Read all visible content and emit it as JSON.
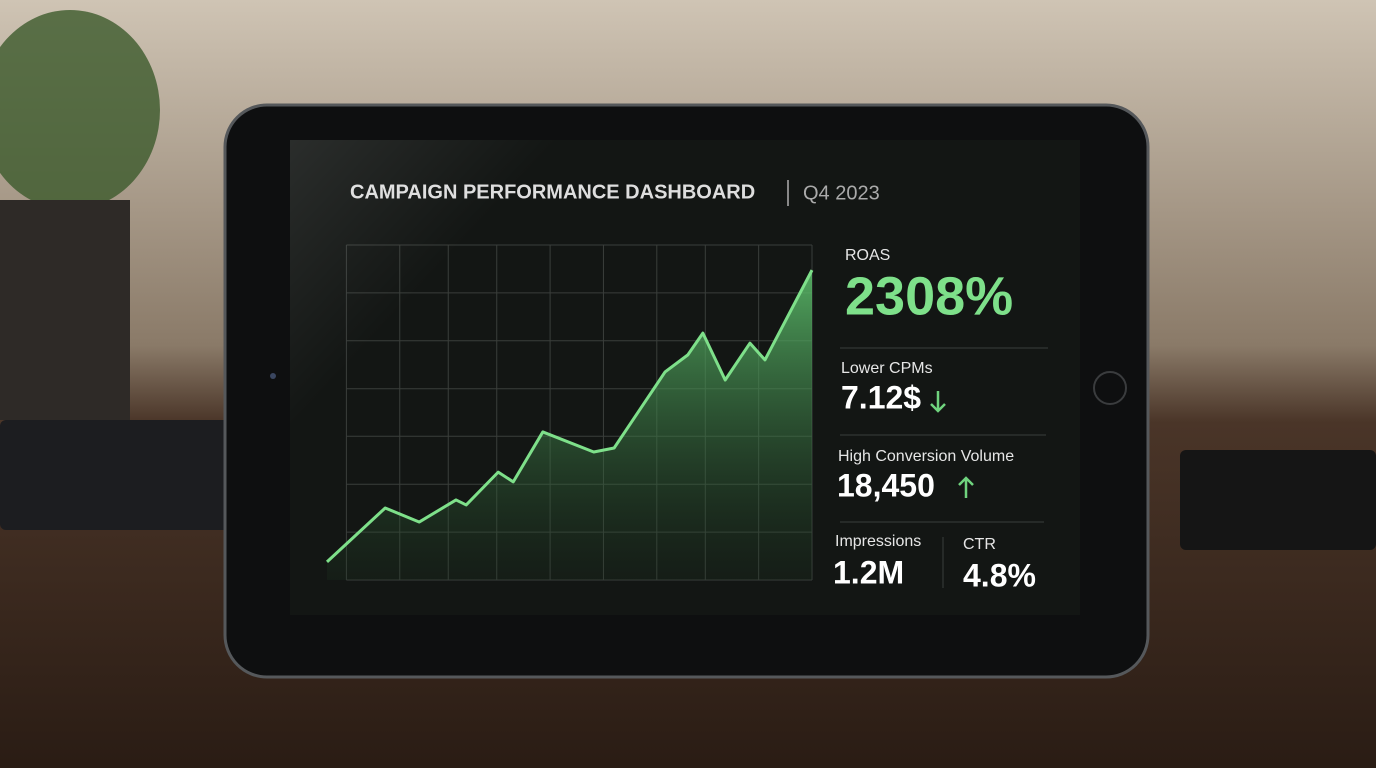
{
  "header": {
    "title": "CAMPAIGN PERFORMANCE DASHBOARD",
    "period": "Q4 2023"
  },
  "chart_data": {
    "type": "area",
    "color": "#7ee08a",
    "grid": true,
    "x": [
      0,
      12,
      19,
      26.6,
      28.7,
      35.3,
      38.4,
      44.5,
      55,
      59.2,
      69.7,
      74.4,
      77.5,
      82.1,
      87.2,
      90.3,
      100
    ],
    "values": [
      5.4,
      21.5,
      17.3,
      23.9,
      22.4,
      32.2,
      29.3,
      44.2,
      38.2,
      39.4,
      62.1,
      67.2,
      73.7,
      59.7,
      70.7,
      65.7,
      92.5
    ],
    "xlim": [
      0,
      100
    ],
    "ylim": [
      0,
      100
    ],
    "xticks": [
      4,
      15,
      25,
      35,
      46,
      57,
      68,
      78,
      89,
      100
    ],
    "yticks": [
      0,
      14.3,
      28.6,
      42.9,
      57.1,
      71.4,
      85.7,
      100
    ]
  },
  "metrics": {
    "roas": {
      "label": "ROAS",
      "value": "2308%"
    },
    "cpm": {
      "label": "Lower CPMs",
      "value": "7.12$"
    },
    "conversions": {
      "label": "High Conversion Volume",
      "value": "18,450"
    },
    "impressions": {
      "label": "Impressions",
      "value": "1.2M"
    },
    "ctr": {
      "label": "CTR",
      "value": "4.8%"
    }
  }
}
